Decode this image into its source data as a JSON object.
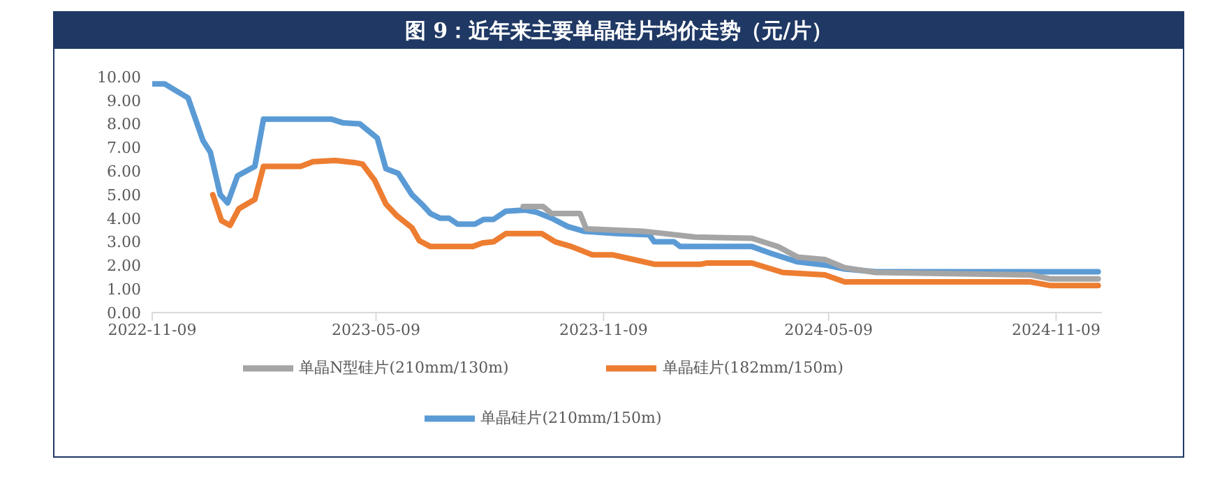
{
  "chart_data": {
    "type": "line",
    "title": "图 9：近年来主要单晶硅片均价走势（元/片）",
    "xlim": [
      "2022-11-09",
      "2024-12-16"
    ],
    "xticks": [
      "2022-11-09",
      "2023-05-09",
      "2023-11-09",
      "2024-05-09",
      "2024-11-09"
    ],
    "ylim": [
      0,
      10
    ],
    "yticks": [
      {
        "value": 0,
        "label": "0.00"
      },
      {
        "value": 1,
        "label": "1.00"
      },
      {
        "value": 2,
        "label": "2.00"
      },
      {
        "value": 3,
        "label": "3.00"
      },
      {
        "value": 4,
        "label": "4.00"
      },
      {
        "value": 5,
        "label": "5.00"
      },
      {
        "value": 6,
        "label": "6.00"
      },
      {
        "value": 7,
        "label": "7.00"
      },
      {
        "value": 8,
        "label": "8.00"
      },
      {
        "value": 9,
        "label": "9.00"
      },
      {
        "value": 10,
        "label": "10.00"
      }
    ],
    "grid": false,
    "legend": "bottom",
    "marker": "none",
    "line_style": "solid",
    "series": [
      {
        "name": "单晶硅片(210mm/150m)",
        "color": "#5b9bd5",
        "x": [
          "2022-11-09",
          "2022-11-19",
          "2022-12-08",
          "2022-12-20",
          "2022-12-26",
          "2023-01-03",
          "2023-01-09",
          "2023-01-17",
          "2023-01-31",
          "2023-02-07",
          "2023-04-03",
          "2023-04-12",
          "2023-04-26",
          "2023-05-10",
          "2023-05-17",
          "2023-05-27",
          "2023-06-07",
          "2023-06-15",
          "2023-06-22",
          "2023-06-30",
          "2023-07-07",
          "2023-07-14",
          "2023-07-28",
          "2023-08-04",
          "2023-08-12",
          "2023-08-22",
          "2023-09-07",
          "2023-09-16",
          "2023-09-28",
          "2023-10-11",
          "2023-10-24",
          "2023-11-20",
          "2023-12-16",
          "2023-12-20",
          "2024-01-05",
          "2024-01-10",
          "2024-03-08",
          "2024-03-24",
          "2024-04-14",
          "2024-05-08",
          "2024-05-22",
          "2024-06-16",
          "2024-12-13"
        ],
        "values": [
          9.7,
          9.7,
          9.1,
          7.3,
          6.8,
          5.0,
          4.65,
          5.8,
          6.2,
          8.2,
          8.2,
          8.05,
          8.0,
          7.4,
          6.1,
          5.9,
          5.0,
          4.6,
          4.2,
          4.0,
          4.0,
          3.75,
          3.75,
          3.95,
          3.95,
          4.3,
          4.35,
          4.25,
          4.0,
          3.65,
          3.45,
          3.35,
          3.3,
          3.0,
          3.0,
          2.8,
          2.8,
          2.5,
          2.15,
          2.0,
          1.85,
          1.73,
          1.73
        ]
      },
      {
        "name": "单晶硅片(182mm/150m)",
        "color": "#ed7d31",
        "x": [
          "2022-12-28",
          "2023-01-04",
          "2023-01-11",
          "2023-01-18",
          "2023-01-31",
          "2023-02-07",
          "2023-03-09",
          "2023-03-19",
          "2023-04-06",
          "2023-04-23",
          "2023-04-28",
          "2023-05-08",
          "2023-05-17",
          "2023-05-26",
          "2023-06-07",
          "2023-06-13",
          "2023-06-22",
          "2023-07-26",
          "2023-08-03",
          "2023-08-12",
          "2023-08-22",
          "2023-09-20",
          "2023-10-01",
          "2023-10-14",
          "2023-10-31",
          "2023-11-16",
          "2023-11-29",
          "2023-12-20",
          "2024-01-27",
          "2024-01-31",
          "2024-03-08",
          "2024-04-02",
          "2024-05-06",
          "2024-05-22",
          "2024-10-19",
          "2024-11-04",
          "2024-12-13"
        ],
        "values": [
          5.0,
          3.9,
          3.7,
          4.4,
          4.8,
          6.2,
          6.2,
          6.4,
          6.45,
          6.35,
          6.3,
          5.6,
          4.6,
          4.1,
          3.6,
          3.05,
          2.8,
          2.8,
          2.95,
          3.0,
          3.35,
          3.35,
          3.0,
          2.8,
          2.45,
          2.45,
          2.3,
          2.05,
          2.05,
          2.1,
          2.1,
          1.7,
          1.6,
          1.3,
          1.3,
          1.15,
          1.15
        ]
      },
      {
        "name": "单晶N型硅片(210mm/130m)",
        "color": "#a5a5a5",
        "x": [
          "2023-09-05",
          "2023-09-21",
          "2023-09-28",
          "2023-10-21",
          "2023-10-26",
          "2023-12-11",
          "2024-01-22",
          "2024-03-08",
          "2024-03-23",
          "2024-03-29",
          "2024-04-14",
          "2024-05-06",
          "2024-05-22",
          "2024-06-16",
          "2024-10-19",
          "2024-11-04",
          "2024-12-13"
        ],
        "values": [
          4.5,
          4.5,
          4.2,
          4.2,
          3.55,
          3.45,
          3.2,
          3.15,
          2.9,
          2.8,
          2.35,
          2.25,
          1.9,
          1.7,
          1.6,
          1.43,
          1.43
        ]
      }
    ]
  }
}
